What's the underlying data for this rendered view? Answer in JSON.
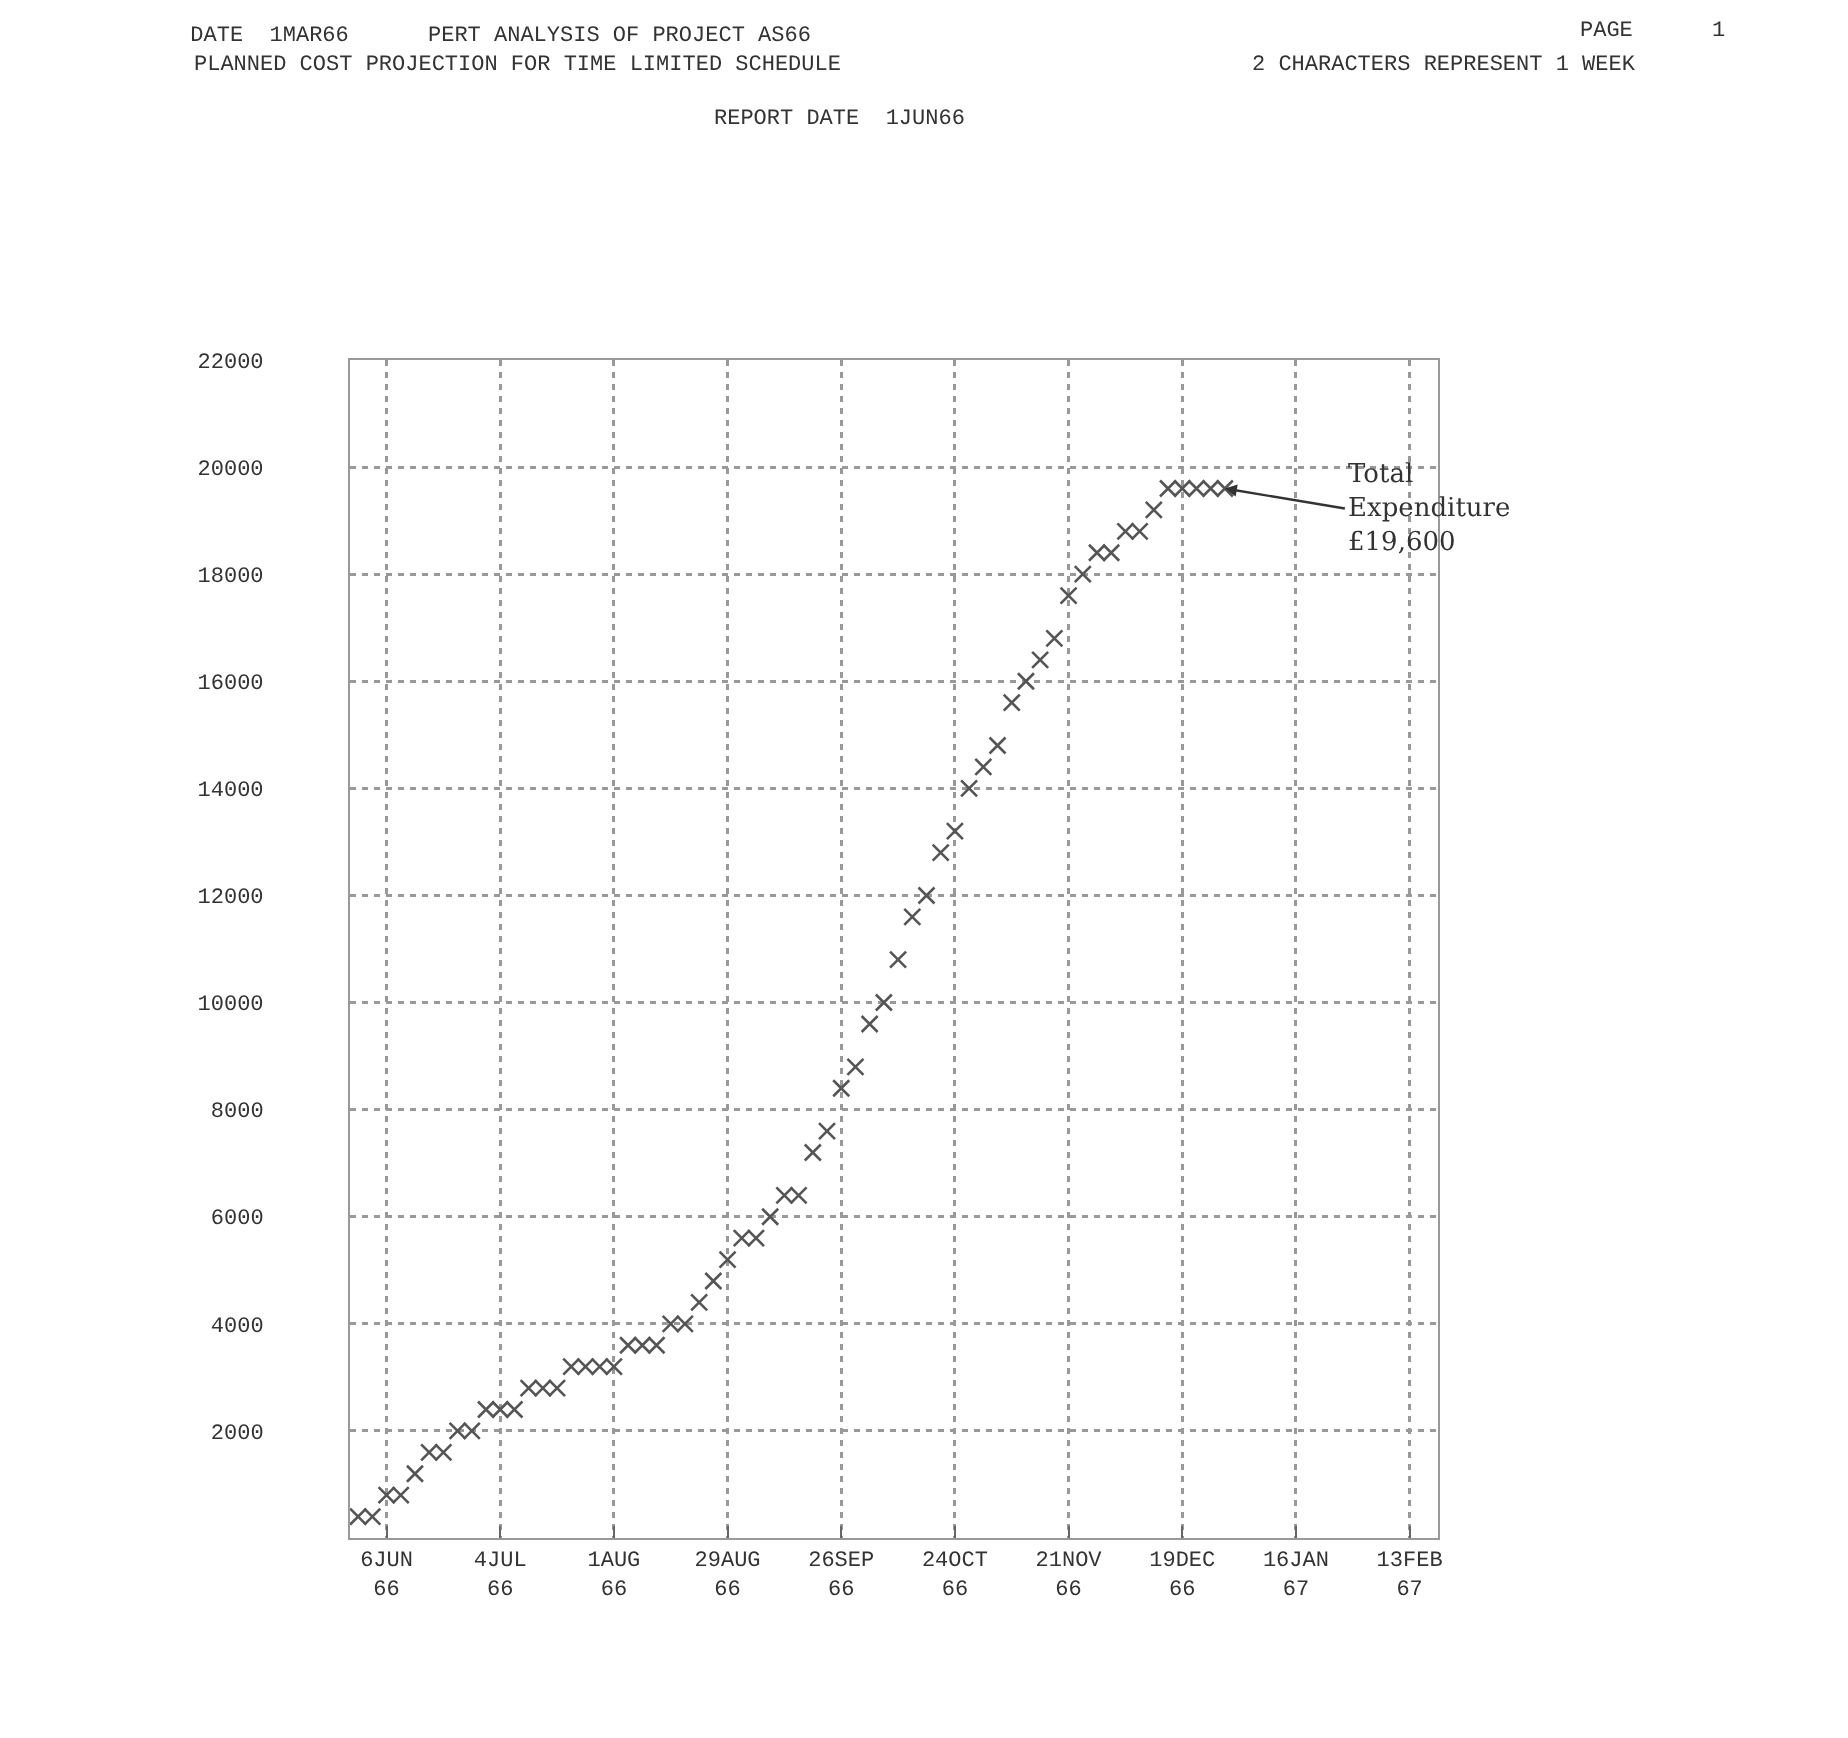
{
  "chart_data": {
    "type": "scatter",
    "title": "DATE  1MAR66      PERT ANALYSIS OF PROJECT AS66",
    "subtitle": "PLANNED COST PROJECTION FOR TIME LIMITED SCHEDULE",
    "annotations": [
      "PAGE      1",
      "2 CHARACTERS REPRESENT 1 WEEK",
      "REPORT DATE  1JUN66",
      {
        "text": "Total\nExpenditure\n£19,600",
        "x": "1966-12-29T12:00",
        "y": 19600
      }
    ],
    "x": [
      "1966-05-30",
      "1966-06-02T12:00",
      "1966-06-06",
      "1966-06-09T12:00",
      "1966-06-13",
      "1966-06-16T12:00",
      "1966-06-20",
      "1966-06-23T12:00",
      "1966-06-27",
      "1966-06-30T12:00",
      "1966-07-04",
      "1966-07-07T12:00",
      "1966-07-11",
      "1966-07-14T12:00",
      "1966-07-18",
      "1966-07-21T12:00",
      "1966-07-25",
      "1966-07-28T12:00",
      "1966-08-01",
      "1966-08-04T12:00",
      "1966-08-08",
      "1966-08-11T12:00",
      "1966-08-15",
      "1966-08-18T12:00",
      "1966-08-22",
      "1966-08-25T12:00",
      "1966-08-29",
      "1966-09-01T12:00",
      "1966-09-05",
      "1966-09-08T12:00",
      "1966-09-12",
      "1966-09-15T12:00",
      "1966-09-19",
      "1966-09-22T12:00",
      "1966-09-26",
      "1966-09-29T12:00",
      "1966-10-03",
      "1966-10-06T12:00",
      "1966-10-10",
      "1966-10-13T12:00",
      "1966-10-17",
      "1966-10-20T12:00",
      "1966-10-24",
      "1966-10-27T12:00",
      "1966-10-31",
      "1966-11-03T12:00",
      "1966-11-07",
      "1966-11-10T12:00",
      "1966-11-14",
      "1966-11-17T12:00",
      "1966-11-21",
      "1966-11-24T12:00",
      "1966-11-28",
      "1966-12-01T12:00",
      "1966-12-05",
      "1966-12-08T12:00",
      "1966-12-12",
      "1966-12-15T12:00",
      "1966-12-19",
      "1966-12-22T12:00",
      "1966-12-26",
      "1966-12-29T12:00"
    ],
    "values": [
      400,
      400,
      800,
      800,
      1200,
      1600,
      1600,
      2000,
      2000,
      2400,
      2400,
      2400,
      2800,
      2800,
      2800,
      3200,
      3200,
      3200,
      3200,
      3600,
      3600,
      3600,
      4000,
      4000,
      4400,
      4800,
      5200,
      5600,
      5600,
      6000,
      6400,
      6400,
      7200,
      7600,
      8400,
      8800,
      9600,
      10000,
      10800,
      11600,
      12000,
      12800,
      13200,
      14000,
      14400,
      14800,
      15600,
      16000,
      16400,
      16800,
      17600,
      18000,
      18400,
      18400,
      18800,
      18800,
      19200,
      19600,
      19600,
      19600,
      19600,
      19600
    ],
    "color": "#555555",
    "marker": "cross",
    "grid": true,
    "xlim": [
      "1966-05-28",
      "1967-02-20"
    ],
    "xticks": [
      {
        "value": "1966-06-06",
        "label": "6JUN\n66"
      },
      {
        "value": "1966-07-04",
        "label": "4JUL\n66"
      },
      {
        "value": "1966-08-01",
        "label": "1AUG\n66"
      },
      {
        "value": "1966-08-29",
        "label": "29AUG\n66"
      },
      {
        "value": "1966-09-26",
        "label": "26SEP\n66"
      },
      {
        "value": "1966-10-24",
        "label": "24OCT\n66"
      },
      {
        "value": "1966-11-21",
        "label": "21NOV\n66"
      },
      {
        "value": "1966-12-19",
        "label": "19DEC\n66"
      },
      {
        "value": "1967-01-16",
        "label": "16JAN\n67"
      },
      {
        "value": "1967-02-13",
        "label": "13FEB\n67"
      }
    ],
    "ylim": [
      0,
      22000
    ],
    "yticks": [
      2000,
      4000,
      6000,
      8000,
      10000,
      12000,
      14000,
      16000,
      18000,
      20000,
      22000
    ]
  }
}
